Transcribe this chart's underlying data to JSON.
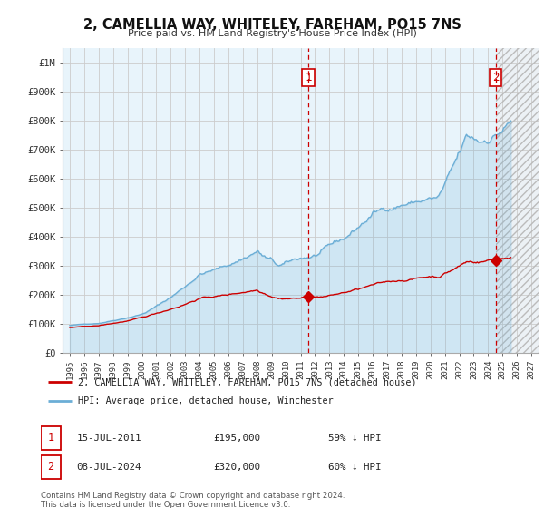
{
  "title": "2, CAMELLIA WAY, WHITELEY, FAREHAM, PO15 7NS",
  "subtitle": "Price paid vs. HM Land Registry's House Price Index (HPI)",
  "hpi_label": "HPI: Average price, detached house, Winchester",
  "property_label": "2, CAMELLIA WAY, WHITELEY, FAREHAM, PO15 7NS (detached house)",
  "footer": "Contains HM Land Registry data © Crown copyright and database right 2024.\nThis data is licensed under the Open Government Licence v3.0.",
  "sale1_date": "15-JUL-2011",
  "sale1_price": "£195,000",
  "sale1_hpi": "59% ↓ HPI",
  "sale2_date": "08-JUL-2024",
  "sale2_price": "£320,000",
  "sale2_hpi": "60% ↓ HPI",
  "hpi_color": "#6baed6",
  "property_color": "#cc0000",
  "sale1_year": 2011.54,
  "sale2_year": 2024.52,
  "sale1_value": 195000,
  "sale2_value": 320000,
  "ylim": [
    0,
    1050000
  ],
  "xlim": [
    1994.5,
    2027.5
  ],
  "yticks": [
    0,
    100000,
    200000,
    300000,
    400000,
    500000,
    600000,
    700000,
    800000,
    900000,
    1000000
  ],
  "ytick_labels": [
    "£0",
    "£100K",
    "£200K",
    "£300K",
    "£400K",
    "£500K",
    "£600K",
    "£700K",
    "£800K",
    "£900K",
    "£1M"
  ],
  "xticks": [
    1995,
    1996,
    1997,
    1998,
    1999,
    2000,
    2001,
    2002,
    2003,
    2004,
    2005,
    2006,
    2007,
    2008,
    2009,
    2010,
    2011,
    2012,
    2013,
    2014,
    2015,
    2016,
    2017,
    2018,
    2019,
    2020,
    2021,
    2022,
    2023,
    2024,
    2025,
    2026,
    2027
  ],
  "background_color": "#ffffff",
  "grid_color": "#cccccc",
  "hatch_start": 2024.52,
  "hatch_end": 2027.5
}
